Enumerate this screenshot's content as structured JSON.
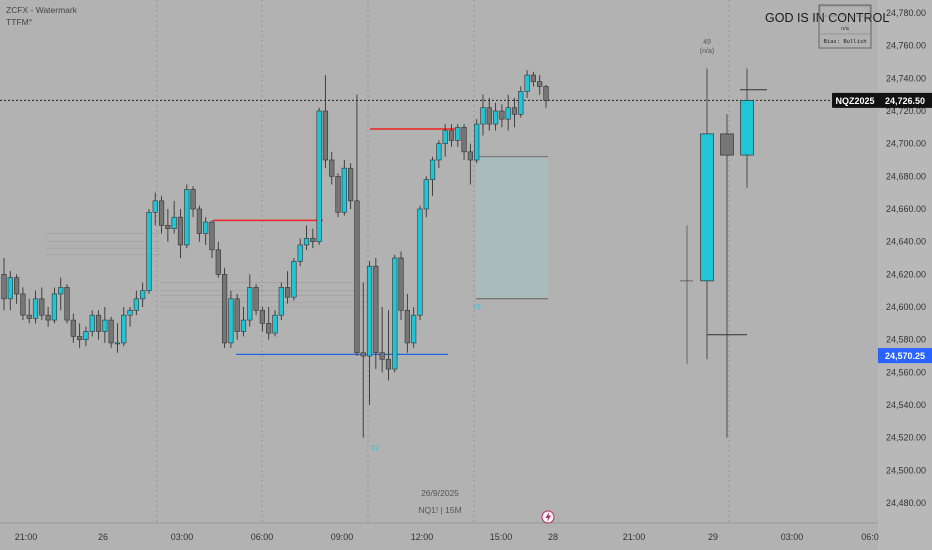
{
  "header": {
    "indicator_line1": "ZCFX - Watermark",
    "indicator_line2": "TTFM°",
    "watermark_title": "GOD IS IN CONTROL"
  },
  "bias_box": {
    "line1": "n/a",
    "line2": "Bias: Bullish"
  },
  "ticker_label": {
    "symbol": "NQZ2025",
    "price": "24,726.50"
  },
  "crosshair_price": "24,570.25",
  "info": {
    "date": "26/9/2025",
    "symbol": "NQ1! | 15M"
  },
  "projection_label": {
    "count": "49",
    "sub": "(n/a)"
  },
  "small_labels": {
    "box_label": "C5",
    "low_label": "C2"
  },
  "colors": {
    "background": "#b2b2b2",
    "bull": "#20c6d6",
    "bear": "#767676",
    "red_line": "#ee2222",
    "blue_line": "#2266dd",
    "fvg_box": "#a8bcbc",
    "price_axis_bg": "#b8b8b8",
    "tag_dark": "#111111",
    "tag_blue": "#2962ff"
  },
  "chart_data": {
    "type": "candlestick",
    "symbol": "NQ1!",
    "timeframe": "15M",
    "y_axis": {
      "range": [
        24460,
        24800
      ],
      "ticks": [
        "24,780.00",
        "24,760.00",
        "24,740.00",
        "24,720.00",
        "24,700.00",
        "24,680.00",
        "24,660.00",
        "24,640.00",
        "24,620.00",
        "24,600.00",
        "24,580.00",
        "24,560.00",
        "24,540.00",
        "24,520.00",
        "24,500.00",
        "24,480.00"
      ]
    },
    "x_axis": {
      "ticks": [
        "21:00",
        "26",
        "03:00",
        "06:00",
        "09:00",
        "12:00",
        "15:00",
        "28",
        "21:00",
        "29",
        "03:00",
        "06:0"
      ]
    },
    "last_price": 24726.5,
    "candles": [
      {
        "o": 24620,
        "h": 24630,
        "l": 24598,
        "c": 24605
      },
      {
        "o": 24605,
        "h": 24622,
        "l": 24598,
        "c": 24618
      },
      {
        "o": 24618,
        "h": 24620,
        "l": 24602,
        "c": 24608
      },
      {
        "o": 24608,
        "h": 24612,
        "l": 24592,
        "c": 24595
      },
      {
        "o": 24595,
        "h": 24605,
        "l": 24590,
        "c": 24593
      },
      {
        "o": 24593,
        "h": 24610,
        "l": 24590,
        "c": 24605
      },
      {
        "o": 24605,
        "h": 24612,
        "l": 24592,
        "c": 24595
      },
      {
        "o": 24595,
        "h": 24600,
        "l": 24588,
        "c": 24592
      },
      {
        "o": 24592,
        "h": 24612,
        "l": 24590,
        "c": 24608
      },
      {
        "o": 24608,
        "h": 24618,
        "l": 24598,
        "c": 24612
      },
      {
        "o": 24612,
        "h": 24614,
        "l": 24590,
        "c": 24592
      },
      {
        "o": 24592,
        "h": 24596,
        "l": 24578,
        "c": 24582
      },
      {
        "o": 24582,
        "h": 24590,
        "l": 24575,
        "c": 24580
      },
      {
        "o": 24580,
        "h": 24588,
        "l": 24576,
        "c": 24585
      },
      {
        "o": 24585,
        "h": 24598,
        "l": 24582,
        "c": 24595
      },
      {
        "o": 24595,
        "h": 24598,
        "l": 24580,
        "c": 24585
      },
      {
        "o": 24585,
        "h": 24600,
        "l": 24578,
        "c": 24592
      },
      {
        "o": 24592,
        "h": 24594,
        "l": 24575,
        "c": 24578
      },
      {
        "o": 24578,
        "h": 24590,
        "l": 24572,
        "c": 24578
      },
      {
        "o": 24578,
        "h": 24600,
        "l": 24576,
        "c": 24595
      },
      {
        "o": 24595,
        "h": 24600,
        "l": 24588,
        "c": 24598
      },
      {
        "o": 24598,
        "h": 24610,
        "l": 24595,
        "c": 24605
      },
      {
        "o": 24605,
        "h": 24615,
        "l": 24600,
        "c": 24610
      },
      {
        "o": 24610,
        "h": 24660,
        "l": 24608,
        "c": 24658
      },
      {
        "o": 24658,
        "h": 24670,
        "l": 24650,
        "c": 24665
      },
      {
        "o": 24665,
        "h": 24668,
        "l": 24645,
        "c": 24650
      },
      {
        "o": 24650,
        "h": 24660,
        "l": 24640,
        "c": 24648
      },
      {
        "o": 24648,
        "h": 24665,
        "l": 24645,
        "c": 24655
      },
      {
        "o": 24655,
        "h": 24660,
        "l": 24630,
        "c": 24638
      },
      {
        "o": 24638,
        "h": 24675,
        "l": 24636,
        "c": 24672
      },
      {
        "o": 24672,
        "h": 24674,
        "l": 24655,
        "c": 24660
      },
      {
        "o": 24660,
        "h": 24662,
        "l": 24640,
        "c": 24645
      },
      {
        "o": 24645,
        "h": 24655,
        "l": 24638,
        "c": 24652
      },
      {
        "o": 24652,
        "h": 24653,
        "l": 24630,
        "c": 24635
      },
      {
        "o": 24635,
        "h": 24640,
        "l": 24618,
        "c": 24620
      },
      {
        "o": 24620,
        "h": 24624,
        "l": 24575,
        "c": 24578
      },
      {
        "o": 24578,
        "h": 24610,
        "l": 24575,
        "c": 24605
      },
      {
        "o": 24605,
        "h": 24608,
        "l": 24580,
        "c": 24585
      },
      {
        "o": 24585,
        "h": 24600,
        "l": 24582,
        "c": 24592
      },
      {
        "o": 24592,
        "h": 24620,
        "l": 24588,
        "c": 24612
      },
      {
        "o": 24612,
        "h": 24614,
        "l": 24595,
        "c": 24598
      },
      {
        "o": 24598,
        "h": 24600,
        "l": 24585,
        "c": 24590
      },
      {
        "o": 24590,
        "h": 24600,
        "l": 24580,
        "c": 24584
      },
      {
        "o": 24584,
        "h": 24598,
        "l": 24582,
        "c": 24595
      },
      {
        "o": 24595,
        "h": 24615,
        "l": 24592,
        "c": 24612
      },
      {
        "o": 24612,
        "h": 24622,
        "l": 24602,
        "c": 24606
      },
      {
        "o": 24606,
        "h": 24630,
        "l": 24604,
        "c": 24628
      },
      {
        "o": 24628,
        "h": 24642,
        "l": 24625,
        "c": 24638
      },
      {
        "o": 24638,
        "h": 24650,
        "l": 24635,
        "c": 24642
      },
      {
        "o": 24642,
        "h": 24648,
        "l": 24636,
        "c": 24640
      },
      {
        "o": 24640,
        "h": 24722,
        "l": 24638,
        "c": 24720
      },
      {
        "o": 24720,
        "h": 24742,
        "l": 24685,
        "c": 24690
      },
      {
        "o": 24690,
        "h": 24695,
        "l": 24675,
        "c": 24680
      },
      {
        "o": 24680,
        "h": 24682,
        "l": 24655,
        "c": 24658
      },
      {
        "o": 24658,
        "h": 24690,
        "l": 24656,
        "c": 24685
      },
      {
        "o": 24685,
        "h": 24688,
        "l": 24660,
        "c": 24665
      },
      {
        "o": 24665,
        "h": 24730,
        "l": 24570,
        "c": 24572
      },
      {
        "o": 24572,
        "h": 24615,
        "l": 24520,
        "c": 24570
      },
      {
        "o": 24570,
        "h": 24628,
        "l": 24540,
        "c": 24625
      },
      {
        "o": 24625,
        "h": 24630,
        "l": 24562,
        "c": 24572
      },
      {
        "o": 24572,
        "h": 24600,
        "l": 24560,
        "c": 24568
      },
      {
        "o": 24568,
        "h": 24598,
        "l": 24555,
        "c": 24562
      },
      {
        "o": 24562,
        "h": 24632,
        "l": 24560,
        "c": 24630
      },
      {
        "o": 24630,
        "h": 24634,
        "l": 24592,
        "c": 24598
      },
      {
        "o": 24598,
        "h": 24608,
        "l": 24572,
        "c": 24578
      },
      {
        "o": 24578,
        "h": 24600,
        "l": 24575,
        "c": 24595
      },
      {
        "o": 24595,
        "h": 24662,
        "l": 24592,
        "c": 24660
      },
      {
        "o": 24660,
        "h": 24680,
        "l": 24655,
        "c": 24678
      },
      {
        "o": 24678,
        "h": 24692,
        "l": 24668,
        "c": 24690
      },
      {
        "o": 24690,
        "h": 24702,
        "l": 24685,
        "c": 24700
      },
      {
        "o": 24700,
        "h": 24712,
        "l": 24692,
        "c": 24708
      },
      {
        "o": 24708,
        "h": 24712,
        "l": 24698,
        "c": 24702
      },
      {
        "o": 24702,
        "h": 24712,
        "l": 24698,
        "c": 24710
      },
      {
        "o": 24710,
        "h": 24712,
        "l": 24690,
        "c": 24695
      },
      {
        "o": 24695,
        "h": 24700,
        "l": 24675,
        "c": 24690
      },
      {
        "o": 24690,
        "h": 24715,
        "l": 24688,
        "c": 24712
      },
      {
        "o": 24712,
        "h": 24730,
        "l": 24705,
        "c": 24722
      },
      {
        "o": 24722,
        "h": 24728,
        "l": 24708,
        "c": 24712
      },
      {
        "o": 24712,
        "h": 24725,
        "l": 24708,
        "c": 24720
      },
      {
        "o": 24720,
        "h": 24724,
        "l": 24710,
        "c": 24715
      },
      {
        "o": 24715,
        "h": 24730,
        "l": 24708,
        "c": 24722
      },
      {
        "o": 24722,
        "h": 24728,
        "l": 24710,
        "c": 24718
      },
      {
        "o": 24718,
        "h": 24735,
        "l": 24716,
        "c": 24732
      },
      {
        "o": 24732,
        "h": 24745,
        "l": 24728,
        "c": 24742
      },
      {
        "o": 24742,
        "h": 24744,
        "l": 24735,
        "c": 24738
      },
      {
        "o": 24738,
        "h": 24742,
        "l": 24730,
        "c": 24735
      },
      {
        "o": 24735,
        "h": 24736,
        "l": 24722,
        "c": 24726.5
      }
    ],
    "projection_candles": [
      {
        "o": 24616,
        "h": 24746,
        "l": 24568,
        "c": 24706
      },
      {
        "o": 24706,
        "h": 24718,
        "l": 24520,
        "c": 24693
      },
      {
        "o": 24693,
        "h": 24746,
        "l": 24673,
        "c": 24726.5
      }
    ],
    "levels": [
      {
        "name": "red-level-1",
        "price": 24653
      },
      {
        "name": "red-level-2",
        "price": 24709
      },
      {
        "name": "blue-level",
        "price": 24571
      }
    ],
    "fvg_zone": {
      "top": 24692,
      "bottom": 24605
    }
  }
}
